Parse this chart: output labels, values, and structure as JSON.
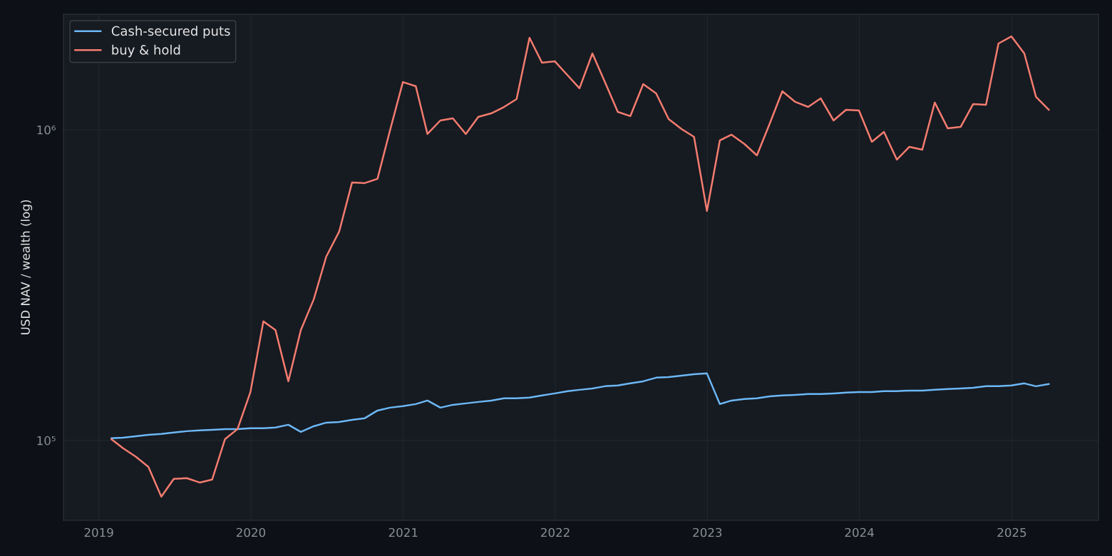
{
  "chart_data": {
    "type": "line",
    "ylabel": "USD NAV / wealth (log)",
    "log": "y",
    "grid": true,
    "legend": "top left",
    "line_style": "solid",
    "marker": "none",
    "x": [
      "2019-01-31",
      "2019-02-28",
      "2019-03-31",
      "2019-04-30",
      "2019-05-31",
      "2019-06-30",
      "2019-07-31",
      "2019-08-31",
      "2019-09-30",
      "2019-10-31",
      "2019-11-30",
      "2019-12-31",
      "2020-01-31",
      "2020-02-29",
      "2020-03-31",
      "2020-04-30",
      "2020-05-31",
      "2020-06-30",
      "2020-07-31",
      "2020-08-31",
      "2020-09-30",
      "2020-10-31",
      "2020-11-30",
      "2020-12-31",
      "2021-01-31",
      "2021-02-28",
      "2021-03-31",
      "2021-04-30",
      "2021-05-31",
      "2021-06-30",
      "2021-07-31",
      "2021-08-31",
      "2021-09-30",
      "2021-10-31",
      "2021-11-30",
      "2021-12-31",
      "2022-01-31",
      "2022-02-28",
      "2022-03-31",
      "2022-04-30",
      "2022-05-31",
      "2022-06-30",
      "2022-07-31",
      "2022-08-31",
      "2022-09-30",
      "2022-10-31",
      "2022-11-30",
      "2022-12-31",
      "2023-01-31",
      "2023-02-28",
      "2023-03-31",
      "2023-04-30",
      "2023-05-31",
      "2023-06-30",
      "2023-07-31",
      "2023-08-31",
      "2023-09-30",
      "2023-10-31",
      "2023-11-30",
      "2023-12-31",
      "2024-01-31",
      "2024-02-29",
      "2024-03-31",
      "2024-04-30",
      "2024-05-31",
      "2024-06-30",
      "2024-07-31",
      "2024-08-31",
      "2024-09-30",
      "2024-10-31",
      "2024-11-30",
      "2024-12-31",
      "2025-01-31",
      "2025-02-28",
      "2025-03-31"
    ],
    "series": [
      {
        "name": "Cash-secured puts",
        "color": "#6cb8f6",
        "values": [
          101600,
          102100,
          103200,
          104300,
          104900,
          106000,
          107100,
          107700,
          108200,
          108800,
          108800,
          109400,
          109400,
          110000,
          112300,
          106500,
          111100,
          114100,
          114700,
          116500,
          117800,
          124800,
          127500,
          128900,
          130900,
          134400,
          127500,
          130200,
          131600,
          133000,
          134400,
          136600,
          136600,
          137300,
          139500,
          141700,
          144000,
          145500,
          147000,
          149400,
          150200,
          152600,
          155000,
          159200,
          160000,
          161700,
          163400,
          164300,
          130900,
          134400,
          135900,
          136600,
          138700,
          139500,
          140200,
          141000,
          141000,
          141700,
          142500,
          143200,
          143200,
          144000,
          144000,
          144700,
          144700,
          145500,
          146300,
          147000,
          147800,
          149400,
          149400,
          150200,
          152600,
          149400,
          151800
        ]
      },
      {
        "name": "buy & hold",
        "color": "#f47c6f",
        "values": [
          101000,
          94400,
          88600,
          82200,
          65900,
          75200,
          75600,
          73200,
          74800,
          101000,
          108800,
          143200,
          241600,
          226700,
          155000,
          226700,
          284600,
          390500,
          469900,
          676600,
          673100,
          694800,
          994700,
          1424000,
          1380000,
          968800,
          1071000,
          1088000,
          968800,
          1100000,
          1129000,
          1184000,
          1255000,
          1976000,
          1643000,
          1660000,
          1494000,
          1359000,
          1760000,
          1424000,
          1141000,
          1106000,
          1402000,
          1309000,
          1082000,
          1005000,
          948500,
          547800,
          923900,
          963700,
          899800,
          826800,
          1049000,
          1330000,
          1229000,
          1184000,
          1262000,
          1071000,
          1159000,
          1153000,
          914300,
          984300,
          801000,
          881000,
          862600,
          1223000,
          1011000,
          1021000,
          1209000,
          1203000,
          1895000,
          1997000,
          1760000,
          1276000,
          1159000
        ]
      }
    ],
    "xlim": [
      "2018-10-08",
      "2025-07-28"
    ],
    "xticks": [
      "2019",
      "2020",
      "2021",
      "2022",
      "2023",
      "2024",
      "2025"
    ],
    "ylim": [
      55300,
      2353000
    ],
    "yticks": [
      {
        "value": 100000,
        "label": "10⁵"
      },
      {
        "value": 1000000,
        "label": "10⁶"
      }
    ]
  }
}
